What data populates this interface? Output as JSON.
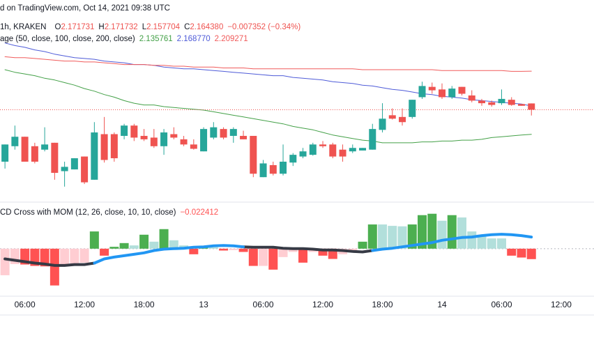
{
  "chart_data": [
    {
      "type": "candlestick",
      "source": "d on TradingView.com, Oct 14, 2021 09:38 UTC",
      "symbol": "1h, KRAKEN",
      "ohlc_labels": [
        {
          "key": "O",
          "text": "2.171731"
        },
        {
          "key": "H",
          "text": "2.171732"
        },
        {
          "key": "L",
          "text": "2.157704"
        },
        {
          "key": "C",
          "text": "2.164380"
        }
      ],
      "change": "−0.007352 (−0.34%)",
      "indicator": "age (50, close, 100, close, 200, close)",
      "up_color": "#26a69a",
      "down_color": "#ef5350",
      "open": [
        2.104,
        2.122,
        2.133,
        2.122,
        2.118,
        2.126,
        2.093,
        2.095,
        2.11,
        2.083,
        2.136,
        2.136,
        2.134,
        2.146,
        2.134,
        2.132,
        2.122,
        2.136,
        2.13,
        2.124,
        2.116,
        2.132,
        2.142,
        2.134,
        2.134,
        2.134,
        2.086,
        2.1,
        2.09,
        2.103,
        2.11,
        2.112,
        2.124,
        2.124,
        2.118,
        2.116,
        2.117,
        2.118,
        2.141,
        2.158,
        2.156,
        2.156,
        2.179,
        2.191,
        2.188,
        2.179,
        2.191,
        2.181,
        2.175,
        2.173,
        2.172,
        2.176,
        2.171,
        2.171731
      ],
      "high": [
        2.124,
        2.146,
        2.133,
        2.126,
        2.144,
        2.126,
        2.104,
        2.108,
        2.11,
        2.15,
        2.156,
        2.138,
        2.148,
        2.148,
        2.142,
        2.142,
        2.142,
        2.144,
        2.134,
        2.13,
        2.144,
        2.15,
        2.144,
        2.144,
        2.14,
        2.134,
        2.106,
        2.104,
        2.124,
        2.114,
        2.12,
        2.126,
        2.128,
        2.126,
        2.124,
        2.124,
        2.12,
        2.148,
        2.172,
        2.166,
        2.166,
        2.176,
        2.197,
        2.196,
        2.195,
        2.192,
        2.191,
        2.187,
        2.177,
        2.175,
        2.188,
        2.179,
        2.171,
        2.171732
      ],
      "low": [
        2.096,
        2.118,
        2.104,
        2.102,
        2.116,
        2.083,
        2.075,
        2.095,
        2.078,
        2.083,
        2.103,
        2.104,
        2.13,
        2.128,
        2.128,
        2.12,
        2.112,
        2.13,
        2.122,
        2.118,
        2.116,
        2.13,
        2.13,
        2.126,
        2.13,
        2.086,
        2.086,
        2.088,
        2.088,
        2.099,
        2.108,
        2.111,
        2.12,
        2.108,
        2.104,
        2.114,
        2.117,
        2.118,
        2.138,
        2.153,
        2.146,
        2.154,
        2.177,
        2.183,
        2.177,
        2.177,
        2.181,
        2.173,
        2.169,
        2.168,
        2.17,
        2.169,
        2.169,
        2.157704
      ],
      "close": [
        2.124,
        2.133,
        2.104,
        2.104,
        2.124,
        2.091,
        2.098,
        2.108,
        2.08,
        2.138,
        2.106,
        2.108,
        2.146,
        2.132,
        2.13,
        2.122,
        2.138,
        2.132,
        2.124,
        2.119,
        2.142,
        2.144,
        2.132,
        2.142,
        2.13,
        2.09,
        2.102,
        2.09,
        2.104,
        2.112,
        2.116,
        2.124,
        2.122,
        2.11,
        2.11,
        2.12,
        2.12,
        2.142,
        2.154,
        2.154,
        2.15,
        2.176,
        2.192,
        2.187,
        2.179,
        2.189,
        2.183,
        2.175,
        2.172,
        2.17,
        2.177,
        2.17,
        2.169,
        2.16438
      ],
      "series": [
        {
          "color": "#43a047",
          "value_label": "2.135761",
          "values": [
            2.211,
            2.208,
            2.206,
            2.204,
            2.201,
            2.199,
            2.196,
            2.193,
            2.189,
            2.186,
            2.182,
            2.179,
            2.175,
            2.172,
            2.17,
            2.17,
            2.168,
            2.167,
            2.166,
            2.165,
            2.164,
            2.162,
            2.16,
            2.158,
            2.156,
            2.154,
            2.152,
            2.15,
            2.148,
            2.145,
            2.143,
            2.141,
            2.138,
            2.135,
            2.133,
            2.131,
            2.129,
            2.128,
            2.126,
            2.126,
            2.126,
            2.126,
            2.127,
            2.127,
            2.128,
            2.128,
            2.129,
            2.129,
            2.13,
            2.132,
            2.133,
            2.134,
            2.135,
            2.135761
          ]
        },
        {
          "color": "#4e5bd8",
          "value_label": "2.168770",
          "values": [
            2.242,
            2.239,
            2.237,
            2.234,
            2.232,
            2.229,
            2.227,
            2.225,
            2.224,
            2.223,
            2.221,
            2.22,
            2.219,
            2.217,
            2.217,
            2.216,
            2.214,
            2.213,
            2.212,
            2.212,
            2.211,
            2.21,
            2.209,
            2.208,
            2.207,
            2.206,
            2.205,
            2.204,
            2.204,
            2.202,
            2.201,
            2.2,
            2.199,
            2.197,
            2.196,
            2.195,
            2.193,
            2.192,
            2.19,
            2.188,
            2.187,
            2.185,
            2.183,
            2.182,
            2.18,
            2.179,
            2.178,
            2.176,
            2.175,
            2.174,
            2.173,
            2.172,
            2.171,
            2.16877
          ]
        },
        {
          "color": "#f05a5a",
          "value_label": "2.209271",
          "values": [
            2.226,
            2.225,
            2.225,
            2.224,
            2.223,
            2.222,
            2.221,
            2.221,
            2.22,
            2.22,
            2.219,
            2.218,
            2.217,
            2.217,
            2.217,
            2.216,
            2.216,
            2.215,
            2.215,
            2.214,
            2.214,
            2.214,
            2.213,
            2.213,
            2.213,
            2.212,
            2.212,
            2.212,
            2.212,
            2.212,
            2.212,
            2.212,
            2.212,
            2.212,
            2.212,
            2.212,
            2.211,
            2.211,
            2.211,
            2.211,
            2.211,
            2.211,
            2.211,
            2.211,
            2.21,
            2.21,
            2.21,
            2.21,
            2.21,
            2.21,
            2.21,
            2.209,
            2.209,
            2.209271
          ]
        }
      ],
      "price_line": true,
      "xlim": [
        -0.5,
        59.3
      ],
      "ylim": [
        2.057,
        2.292
      ]
    },
    {
      "type": "macd",
      "title": "CD Cross with MOM (12, 26, close, 10, 10, close)",
      "value_label": "−0.022412",
      "colors": {
        "up_rising": "#4caf50",
        "up_falling": "#b2dfdb",
        "down_falling": "#ff5252",
        "down_rising": "#ffcdd2"
      },
      "values": [
        -0.057,
        -0.033,
        -0.034,
        -0.037,
        -0.038,
        -0.079,
        -0.037,
        -0.033,
        -0.03,
        0.037,
        -0.015,
        0.004,
        0.012,
        0.007,
        0.03,
        0.015,
        0.042,
        0.018,
        0.007,
        -0.012,
        0.003,
        0.003,
        -0.004,
        -0.003,
        -0.007,
        -0.037,
        -0.037,
        -0.045,
        -0.018,
        -0.007,
        -0.03,
        -0.007,
        -0.015,
        -0.022,
        -0.012,
        -0.006,
        0.015,
        0.052,
        0.052,
        0.049,
        0.048,
        0.052,
        0.072,
        0.075,
        0.06,
        0.072,
        0.067,
        0.037,
        0.03,
        0.022,
        0.022,
        -0.015,
        -0.019,
        -0.022412
      ],
      "lines": [
        {
          "color": "#363a45",
          "values": [
            -0.022,
            -0.025,
            -0.028,
            -0.031,
            -0.033,
            -0.036,
            -0.036,
            -0.034,
            -0.034,
            -0.031,
            null,
            null,
            null,
            null,
            null,
            null,
            null,
            null,
            null,
            null,
            null,
            null,
            null,
            null,
            0.004,
            0.003,
            0.003,
            0.003,
            0.001,
            0,
            0,
            -0.001,
            -0.003,
            -0.003,
            -0.004,
            -0.006,
            -0.007,
            -0.004,
            null,
            null,
            null,
            null,
            null,
            null,
            null,
            null,
            null,
            null,
            null,
            null,
            null,
            null,
            null,
            null
          ]
        },
        {
          "color": "#2196f3",
          "values": [
            null,
            null,
            null,
            null,
            null,
            null,
            null,
            null,
            null,
            -0.031,
            -0.022,
            -0.018,
            -0.015,
            -0.012,
            -0.009,
            -0.004,
            -0.001,
            0,
            0.001,
            0.003,
            0.004,
            0.006,
            0.007,
            0.006,
            0.004,
            null,
            null,
            null,
            null,
            null,
            null,
            null,
            null,
            null,
            null,
            null,
            null,
            -0.004,
            -0.001,
            0.001,
            0.004,
            0.007,
            0.01,
            0.013,
            0.018,
            0.021,
            0.024,
            0.025,
            0.028,
            0.03,
            0.031,
            0.03,
            0.028,
            0.025
          ]
        }
      ],
      "xlim": [
        -0.5,
        59.3
      ],
      "ylim": [
        -0.102,
        0.1
      ],
      "xticks": [
        {
          "value": 2,
          "label": "06:00"
        },
        {
          "value": 8,
          "label": "12:00"
        },
        {
          "value": 14,
          "label": "18:00"
        },
        {
          "value": 20,
          "label": "13"
        },
        {
          "value": 26,
          "label": "06:00"
        },
        {
          "value": 32,
          "label": "12:00"
        },
        {
          "value": 38,
          "label": "18:00"
        },
        {
          "value": 44,
          "label": "14"
        },
        {
          "value": 50,
          "label": "06:00"
        },
        {
          "value": 56,
          "label": "12:00"
        }
      ]
    }
  ]
}
